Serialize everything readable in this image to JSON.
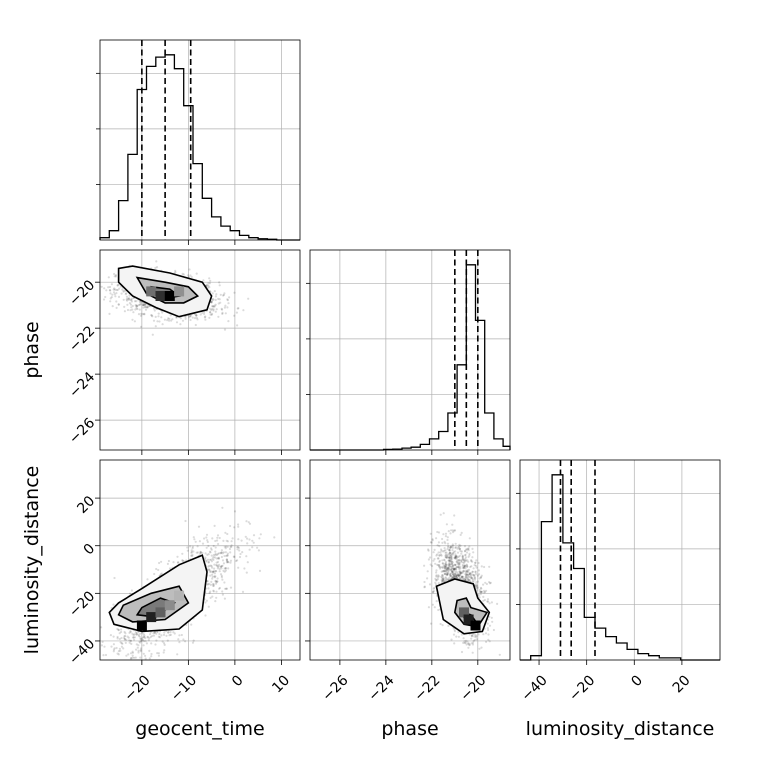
{
  "chart_data": {
    "type": "corner",
    "params": [
      "geocent_time",
      "phase",
      "luminosity_distance"
    ],
    "labels": [
      "geocent_time",
      "phase",
      "luminosity_distance"
    ],
    "ranges": {
      "geocent_time": [
        -29,
        14
      ],
      "phase": [
        -27.3,
        -18.6
      ],
      "luminosity_distance": [
        -48,
        36
      ]
    },
    "ticks": {
      "geocent_time": {
        "values": [
          -20,
          -10,
          0,
          10
        ],
        "labels": [
          "−20",
          "−10",
          "0",
          "10"
        ]
      },
      "phase": {
        "values": [
          -26,
          -24,
          -22,
          -20
        ],
        "labels": [
          "−26",
          "−24",
          "−22",
          "−20"
        ]
      },
      "luminosity_distance": {
        "values": [
          -40,
          -20,
          0,
          20
        ],
        "labels": [
          "−40",
          "−20",
          "0",
          "20"
        ]
      }
    },
    "quantiles": {
      "geocent_time": [
        -20.0,
        -15.0,
        -9.5
      ],
      "phase": [
        -21.0,
        -20.5,
        -20.0
      ],
      "luminosity_distance": [
        -31.0,
        -26.5,
        -16.5
      ]
    },
    "histograms": {
      "geocent_time": {
        "edges": [
          -29,
          -27,
          -25,
          -23,
          -21,
          -19,
          -17,
          -15,
          -13,
          -11,
          -9,
          -7,
          -5,
          -3,
          -1,
          1,
          3,
          5,
          7,
          9,
          11,
          13
        ],
        "counts": [
          1,
          4,
          17,
          37,
          65,
          75,
          79,
          80,
          74,
          58,
          33,
          18,
          10,
          6,
          4,
          2,
          1,
          0.5,
          0.3,
          0,
          0
        ]
      },
      "phase": {
        "edges": [
          -27.3,
          -26.9,
          -26.5,
          -26.1,
          -25.7,
          -25.3,
          -24.9,
          -24.5,
          -24.1,
          -23.7,
          -23.3,
          -22.9,
          -22.5,
          -22.1,
          -21.7,
          -21.3,
          -20.9,
          -20.5,
          -20.1,
          -19.7,
          -19.3,
          -18.9,
          -18.6
        ],
        "counts": [
          0,
          0,
          0,
          0,
          0,
          0,
          0,
          0,
          0.3,
          0.5,
          1,
          1.5,
          3,
          6,
          10,
          20,
          46,
          100,
          70,
          20,
          6,
          2
        ]
      },
      "luminosity_distance": {
        "edges": [
          -48,
          -43.5,
          -39,
          -34.5,
          -30,
          -25.5,
          -21,
          -16.5,
          -12,
          -7.5,
          -3,
          1.5,
          6,
          10.5,
          15,
          19.5,
          24,
          28.5,
          33,
          36
        ],
        "counts": [
          0,
          2,
          65,
          87,
          55,
          43,
          20,
          15,
          11,
          8,
          5,
          3,
          2,
          1,
          1,
          0,
          0,
          0,
          0
        ]
      }
    },
    "joint": {
      "phase_vs_geocent_time": {
        "mean": [
          -14.5,
          -20.6
        ],
        "sd": [
          5.5,
          0.55
        ],
        "slope": -0.045,
        "contours": [
          [
            [
              -25,
              -19.4
            ],
            [
              -22,
              -19.3
            ],
            [
              -14,
              -19.6
            ],
            [
              -7,
              -20.0
            ],
            [
              -5,
              -20.6
            ],
            [
              -6,
              -21.2
            ],
            [
              -12,
              -21.5
            ],
            [
              -17,
              -21.1
            ],
            [
              -22,
              -20.6
            ],
            [
              -25,
              -20.0
            ]
          ],
          [
            [
              -21,
              -19.8
            ],
            [
              -15,
              -20.0
            ],
            [
              -10,
              -20.2
            ],
            [
              -8,
              -20.6
            ],
            [
              -11,
              -20.9
            ],
            [
              -15,
              -20.9
            ],
            [
              -19,
              -20.5
            ]
          ],
          [
            [
              -18,
              -20.2
            ],
            [
              -14,
              -20.3
            ],
            [
              -12,
              -20.6
            ],
            [
              -15,
              -20.7
            ],
            [
              -18,
              -20.5
            ]
          ]
        ],
        "cells": [
          {
            "x": -18,
            "y": -20.4,
            "shade": "#707070"
          },
          {
            "x": -16,
            "y": -20.6,
            "shade": "#303030"
          },
          {
            "x": -14,
            "y": -20.6,
            "shade": "#000000"
          },
          {
            "x": -12,
            "y": -20.4,
            "shade": "#909090"
          }
        ]
      },
      "luminosity_distance_vs_geocent_time": {
        "mean": [
          -13,
          -22
        ],
        "sd": [
          6.5,
          10
        ],
        "slope": 2.6,
        "contours": [
          [
            [
              -27,
              -28
            ],
            [
              -26,
              -33
            ],
            [
              -20,
              -36
            ],
            [
              -12,
              -35
            ],
            [
              -7,
              -27
            ],
            [
              -6,
              -11
            ],
            [
              -7,
              -4
            ],
            [
              -12,
              -8
            ],
            [
              -20,
              -18
            ],
            [
              -25,
              -24
            ]
          ],
          [
            [
              -25,
              -29
            ],
            [
              -22,
              -32
            ],
            [
              -15,
              -31
            ],
            [
              -10,
              -24
            ],
            [
              -12,
              -17
            ],
            [
              -18,
              -20
            ],
            [
              -24,
              -25
            ]
          ],
          [
            [
              -21,
              -29
            ],
            [
              -17,
              -30
            ],
            [
              -13,
              -24
            ],
            [
              -16,
              -22
            ],
            [
              -20,
              -26
            ]
          ]
        ],
        "cells": [
          {
            "x": -20,
            "y": -33.5,
            "shade": "#000000"
          },
          {
            "x": -18,
            "y": -30,
            "shade": "#202020"
          },
          {
            "x": -16,
            "y": -28,
            "shade": "#606060"
          },
          {
            "x": -14,
            "y": -25,
            "shade": "#8c8c8c"
          },
          {
            "x": -12,
            "y": -21,
            "shade": "#b4b4b4"
          }
        ]
      },
      "luminosity_distance_vs_phase": {
        "mean": [
          -20.8,
          -18
        ],
        "sd": [
          0.55,
          11
        ],
        "slope": -12,
        "contours": [
          [
            [
              -21.8,
              -17
            ],
            [
              -21.0,
              -14
            ],
            [
              -20.2,
              -16
            ],
            [
              -20.0,
              -22
            ],
            [
              -19.5,
              -28
            ],
            [
              -19.8,
              -36
            ],
            [
              -20.6,
              -37
            ],
            [
              -21.5,
              -31
            ]
          ],
          [
            [
              -20.9,
              -23
            ],
            [
              -20.5,
              -22
            ],
            [
              -20.3,
              -26
            ],
            [
              -19.6,
              -28
            ],
            [
              -20.0,
              -34
            ],
            [
              -20.6,
              -33
            ],
            [
              -21.0,
              -28
            ]
          ],
          [
            [
              -20.7,
              -28
            ],
            [
              -20.3,
              -29
            ],
            [
              -20.0,
              -33
            ],
            [
              -20.5,
              -32
            ]
          ]
        ],
        "cells": [
          {
            "x": -20.6,
            "y": -28,
            "shade": "#606060"
          },
          {
            "x": -20.4,
            "y": -31,
            "shade": "#202020"
          },
          {
            "x": -20.1,
            "y": -33.5,
            "shade": "#000000"
          }
        ]
      }
    }
  }
}
